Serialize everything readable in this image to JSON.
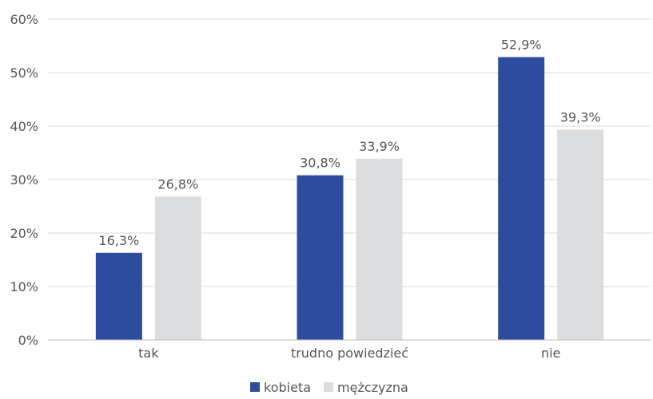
{
  "chart_data": {
    "type": "bar",
    "categories": [
      "tak",
      "trudno powiedzieć",
      "nie"
    ],
    "series": [
      {
        "name": "kobieta",
        "values": [
          16.3,
          30.8,
          52.9
        ],
        "labels": [
          "16,3%",
          "30,8%",
          "52,9%"
        ],
        "color": "#2e4c9f"
      },
      {
        "name": "mężczyzna",
        "values": [
          26.8,
          33.9,
          39.3
        ],
        "labels": [
          "26,8%",
          "33,9%",
          "39,3%"
        ],
        "color": "#dcdddf"
      }
    ],
    "ylim": [
      0,
      60
    ],
    "yticks": [
      0,
      10,
      20,
      30,
      40,
      50,
      60
    ],
    "ytick_labels": [
      "0%",
      "10%",
      "20%",
      "30%",
      "40%",
      "50%",
      "60%"
    ],
    "grid": true,
    "legend_position": "bottom"
  }
}
